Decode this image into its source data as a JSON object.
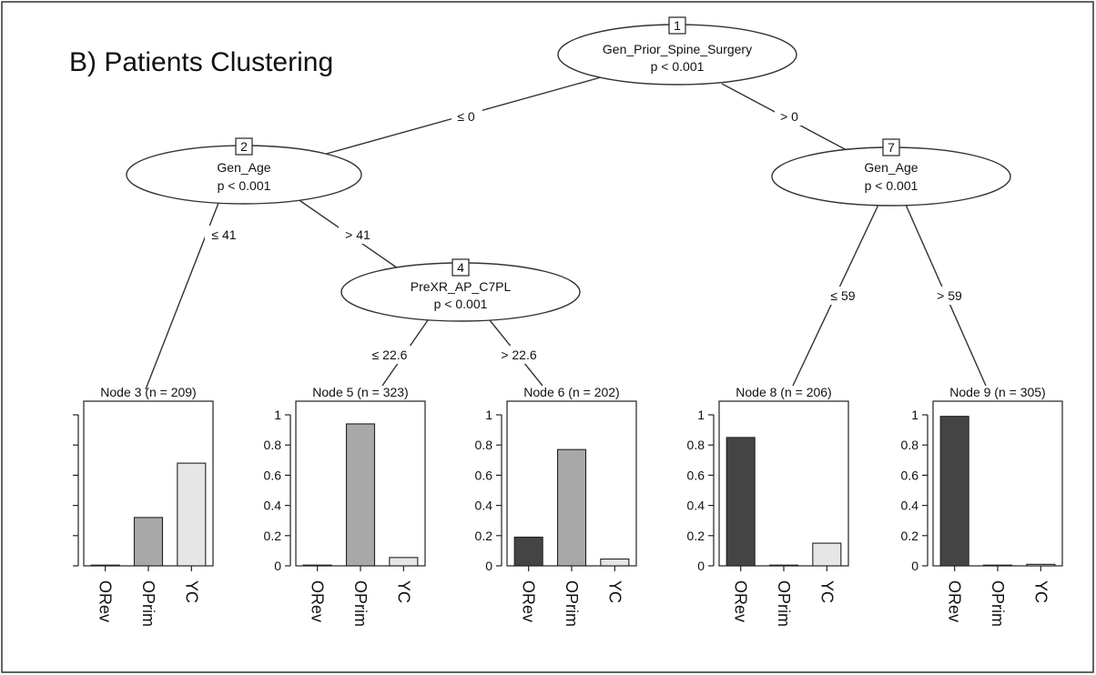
{
  "title": "B) Patients Clustering",
  "colors": {
    "ORev": "#444444",
    "OPrim": "#a8a8a8",
    "YC": "#e6e6e6"
  },
  "categories": [
    "ORev",
    "OPrim",
    "YC"
  ],
  "y_ticks": [
    "0",
    "0.2",
    "0.4",
    "0.6",
    "0.8",
    "1"
  ],
  "inner_nodes": [
    {
      "id": "1",
      "variable": "Gen_Prior_Spine_Surgery",
      "p": "p < 0.001"
    },
    {
      "id": "2",
      "variable": "Gen_Age",
      "p": "p < 0.001"
    },
    {
      "id": "4",
      "variable": "PreXR_AP_C7PL",
      "p": "p < 0.001"
    },
    {
      "id": "7",
      "variable": "Gen_Age",
      "p": "p < 0.001"
    }
  ],
  "edges": [
    {
      "label": "≤ 0"
    },
    {
      "label": "> 0"
    },
    {
      "label": "≤ 41"
    },
    {
      "label": "> 41"
    },
    {
      "label": "≤ 22.6"
    },
    {
      "label": "> 22.6"
    },
    {
      "label": "≤ 59"
    },
    {
      "label": "> 59"
    }
  ],
  "chart_data": [
    {
      "type": "bar",
      "title": "Node 3 (n = 209)",
      "categories": [
        "ORev",
        "OPrim",
        "YC"
      ],
      "values": [
        0.0,
        0.32,
        0.68
      ],
      "ylim": [
        0,
        1
      ],
      "show_ticks": false
    },
    {
      "type": "bar",
      "title": "Node 5 (n = 323)",
      "categories": [
        "ORev",
        "OPrim",
        "YC"
      ],
      "values": [
        0.005,
        0.94,
        0.055
      ],
      "ylim": [
        0,
        1
      ],
      "show_ticks": true
    },
    {
      "type": "bar",
      "title": "Node 6 (n = 202)",
      "categories": [
        "ORev",
        "OPrim",
        "YC"
      ],
      "values": [
        0.19,
        0.77,
        0.045
      ],
      "ylim": [
        0,
        1
      ],
      "show_ticks": true
    },
    {
      "type": "bar",
      "title": "Node 8 (n = 206)",
      "categories": [
        "ORev",
        "OPrim",
        "YC"
      ],
      "values": [
        0.85,
        0.0,
        0.15
      ],
      "ylim": [
        0,
        1
      ],
      "show_ticks": true
    },
    {
      "type": "bar",
      "title": "Node 9 (n = 305)",
      "categories": [
        "ORev",
        "OPrim",
        "YC"
      ],
      "values": [
        0.99,
        0.0,
        0.01
      ],
      "ylim": [
        0,
        1
      ],
      "show_ticks": true
    }
  ]
}
